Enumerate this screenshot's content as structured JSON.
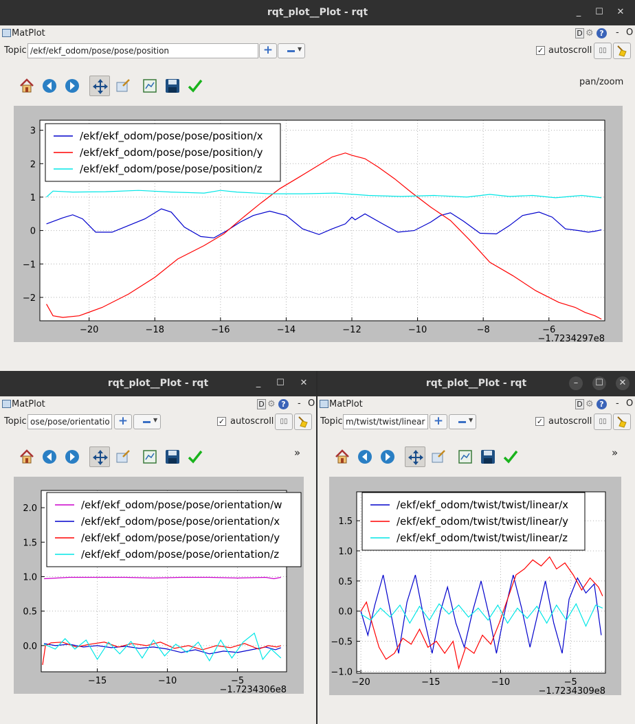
{
  "windows": [
    {
      "title": "rqt_plot__Plot - rqt",
      "plugin_label": "MatPlot",
      "d_label": "D",
      "help_label": "?",
      "dash_label": "-",
      "o_label": "O",
      "topic_label": "Topic",
      "topic_value": "/ekf/ekf_odom/pose/pose/position",
      "autoscroll_label": "autoscroll",
      "autoscroll_checked": "✓",
      "mode_label": "pan/zoom",
      "window_buttons": [
        "_",
        "☐",
        "✕"
      ],
      "chart_data": {
        "type": "line",
        "x_offset_label": "−1.7234297e8",
        "xlim": [
          -21.5,
          -4.3
        ],
        "ylim": [
          -2.7,
          3.3
        ],
        "x_ticks": [
          -20,
          -18,
          -16,
          -14,
          -12,
          -10,
          -8,
          -6
        ],
        "x_tick_labels": [
          "−20",
          "−18",
          "−16",
          "−14",
          "−12",
          "−10",
          "−8",
          "−6"
        ],
        "y_ticks": [
          -2,
          -1,
          0,
          1,
          2,
          3
        ],
        "y_tick_labels": [
          "−2",
          "−1",
          "0",
          "1",
          "2",
          "3"
        ],
        "grid": true,
        "legend_position": "top-left",
        "series": [
          {
            "name": "/ekf/ekf_odom/pose/pose/position/x",
            "color": "#0000cc",
            "x": [
              -21.3,
              -20.8,
              -20.5,
              -20.2,
              -19.8,
              -19.3,
              -18.8,
              -18.3,
              -17.8,
              -17.5,
              -17.1,
              -16.6,
              -16.2,
              -15.8,
              -15.4,
              -15.0,
              -14.5,
              -14.0,
              -13.5,
              -13.0,
              -12.6,
              -12.2,
              -12.0,
              -11.9,
              -11.6,
              -11.1,
              -10.6,
              -10.1,
              -9.6,
              -9.3,
              -9.0,
              -8.6,
              -8.1,
              -7.6,
              -7.2,
              -6.8,
              -6.3,
              -5.9,
              -5.5,
              -5.1,
              -4.8,
              -4.6,
              -4.4
            ],
            "y": [
              0.2,
              0.38,
              0.47,
              0.35,
              -0.05,
              -0.05,
              0.15,
              0.35,
              0.65,
              0.55,
              0.1,
              -0.18,
              -0.22,
              0.0,
              0.25,
              0.45,
              0.58,
              0.45,
              0.05,
              -0.12,
              0.05,
              0.2,
              0.4,
              0.32,
              0.5,
              0.22,
              -0.05,
              0.0,
              0.25,
              0.45,
              0.53,
              0.28,
              -0.08,
              -0.1,
              0.15,
              0.45,
              0.55,
              0.4,
              0.05,
              0.0,
              -0.05,
              -0.02,
              0.02
            ]
          },
          {
            "name": "/ekf/ekf_odom/pose/pose/position/y",
            "color": "#ff0000",
            "x": [
              -21.3,
              -21.1,
              -20.8,
              -20.3,
              -19.6,
              -18.8,
              -18.0,
              -17.3,
              -16.5,
              -15.9,
              -15.3,
              -14.8,
              -14.2,
              -13.6,
              -13.1,
              -12.6,
              -12.2,
              -12.0,
              -11.6,
              -11.2,
              -10.7,
              -10.2,
              -9.6,
              -9.0,
              -8.4,
              -7.8,
              -7.1,
              -6.4,
              -5.7,
              -5.2,
              -4.9,
              -4.6,
              -4.4
            ],
            "y": [
              -2.2,
              -2.55,
              -2.6,
              -2.55,
              -2.3,
              -1.9,
              -1.4,
              -0.85,
              -0.45,
              -0.1,
              0.4,
              0.8,
              1.25,
              1.6,
              1.9,
              2.2,
              2.32,
              2.25,
              2.15,
              1.9,
              1.55,
              1.15,
              0.7,
              0.3,
              -0.3,
              -0.95,
              -1.35,
              -1.8,
              -2.15,
              -2.3,
              -2.45,
              -2.55,
              -2.65
            ]
          },
          {
            "name": "/ekf/ekf_odom/pose/pose/position/z",
            "color": "#00e6e6",
            "x": [
              -21.3,
              -21.1,
              -20.5,
              -19.5,
              -18.5,
              -17.5,
              -16.5,
              -16.0,
              -15.5,
              -14.5,
              -13.5,
              -12.5,
              -11.5,
              -10.5,
              -9.5,
              -8.5,
              -7.8,
              -7.2,
              -6.5,
              -5.8,
              -5.0,
              -4.4
            ],
            "y": [
              1.0,
              1.18,
              1.15,
              1.16,
              1.2,
              1.15,
              1.12,
              1.2,
              1.15,
              1.1,
              1.1,
              1.12,
              1.05,
              1.02,
              1.05,
              1.0,
              1.08,
              1.02,
              1.05,
              0.98,
              1.05,
              0.98
            ]
          }
        ]
      }
    },
    {
      "title": "rqt_plot__Plot - rqt",
      "plugin_label": "MatPlot",
      "d_label": "D",
      "help_label": "?",
      "dash_label": "-",
      "o_label": "O",
      "topic_label": "Topic",
      "topic_value": "ose/pose/orientation",
      "autoscroll_label": "autoscroll",
      "autoscroll_checked": "✓",
      "overflow_label": "»",
      "window_buttons": [
        "_",
        "☐",
        "✕"
      ],
      "chart_data": {
        "type": "line",
        "x_offset_label": "−1.7234306e8",
        "xlim": [
          -19,
          -1.5
        ],
        "ylim": [
          -0.38,
          2.25
        ],
        "x_ticks": [
          -15,
          -10,
          -5
        ],
        "x_tick_labels": [
          "−15",
          "−10",
          "−5"
        ],
        "y_ticks": [
          0.0,
          0.5,
          1.0,
          1.5,
          2.0
        ],
        "y_tick_labels": [
          "0.0",
          "0.5",
          "1.0",
          "1.5",
          "2.0"
        ],
        "grid": true,
        "legend_position": "top-right",
        "series": [
          {
            "name": "/ekf/ekf_odom/pose/pose/orientation/w",
            "color": "#cc00cc",
            "x": [
              -18.8,
              -17,
              -15,
              -13,
              -11,
              -9,
              -7,
              -5,
              -3,
              -2.4,
              -1.9
            ],
            "y": [
              0.97,
              0.99,
              0.99,
              0.99,
              0.98,
              0.99,
              0.99,
              0.98,
              0.99,
              0.97,
              0.99
            ]
          },
          {
            "name": "/ekf/ekf_odom/pose/pose/orientation/x",
            "color": "#0000cc",
            "x": [
              -18.8,
              -18.0,
              -17.0,
              -16.0,
              -15.0,
              -14.0,
              -13.0,
              -12.0,
              -11.0,
              -10.0,
              -9.0,
              -8.0,
              -7.0,
              -6.0,
              -5.0,
              -4.0,
              -3.0,
              -2.3,
              -1.9
            ],
            "y": [
              0.03,
              0.0,
              0.02,
              -0.02,
              0.0,
              -0.03,
              -0.01,
              -0.04,
              -0.02,
              -0.05,
              -0.1,
              -0.06,
              -0.12,
              -0.08,
              -0.1,
              -0.06,
              -0.02,
              -0.06,
              -0.03
            ]
          },
          {
            "name": "/ekf/ekf_odom/pose/pose/orientation/y",
            "color": "#ff0000",
            "x": [
              -18.9,
              -18.7,
              -18.3,
              -17.5,
              -16.5,
              -15.5,
              -14.5,
              -13.5,
              -12.5,
              -11.5,
              -10.5,
              -9.5,
              -8.5,
              -7.5,
              -6.5,
              -5.5,
              -4.5,
              -3.5,
              -2.8,
              -2.2,
              -1.9
            ],
            "y": [
              -0.28,
              0.0,
              0.04,
              0.05,
              -0.02,
              0.02,
              0.05,
              -0.02,
              0.03,
              0.0,
              0.05,
              -0.04,
              0.0,
              -0.06,
              0.0,
              -0.03,
              0.03,
              -0.05,
              0.0,
              -0.02,
              0.0
            ]
          },
          {
            "name": "/ekf/ekf_odom/pose/pose/orientation/z",
            "color": "#00e6e6",
            "x": [
              -18.8,
              -18.0,
              -17.3,
              -16.6,
              -15.8,
              -15.0,
              -14.2,
              -13.4,
              -12.6,
              -11.8,
              -11.0,
              -10.2,
              -9.4,
              -8.6,
              -7.8,
              -7.0,
              -6.2,
              -5.4,
              -4.6,
              -3.8,
              -3.2,
              -2.6,
              -1.9
            ],
            "y": [
              0.02,
              -0.05,
              0.1,
              -0.05,
              0.08,
              -0.2,
              0.05,
              -0.12,
              0.06,
              -0.18,
              0.08,
              -0.15,
              0.02,
              -0.1,
              0.05,
              -0.22,
              0.08,
              -0.18,
              0.05,
              0.18,
              -0.2,
              -0.05,
              -0.18
            ]
          }
        ]
      }
    },
    {
      "title": "rqt_plot__Plot - rqt",
      "plugin_label": "MatPlot",
      "d_label": "D",
      "help_label": "?",
      "dash_label": "-",
      "o_label": "O",
      "topic_label": "Topic",
      "topic_value": "m/twist/twist/linear",
      "autoscroll_label": "autoscroll",
      "autoscroll_checked": "✓",
      "overflow_label": "»",
      "window_buttons": [
        "–",
        "☐",
        "✕"
      ],
      "chart_data": {
        "type": "line",
        "x_offset_label": "−1.7234309e8",
        "xlim": [
          -20.3,
          -2.5
        ],
        "ylim": [
          -1.03,
          1.98
        ],
        "x_ticks": [
          -20,
          -15,
          -10,
          -5
        ],
        "x_tick_labels": [
          "−20",
          "−15",
          "−10",
          "−5"
        ],
        "y_ticks": [
          -1.0,
          -0.5,
          0.0,
          0.5,
          1.0,
          1.5
        ],
        "y_tick_labels": [
          "−1.0",
          "−0.5",
          "0.0",
          "0.5",
          "1.0",
          "1.5"
        ],
        "grid": true,
        "legend_position": "top-left",
        "series": [
          {
            "name": "/ekf/ekf_odom/twist/twist/linear/x",
            "color": "#0000cc",
            "x": [
              -20.0,
              -19.5,
              -19.0,
              -18.4,
              -17.8,
              -17.3,
              -16.7,
              -16.1,
              -15.5,
              -14.9,
              -14.3,
              -13.8,
              -13.2,
              -12.6,
              -12.0,
              -11.4,
              -10.8,
              -10.3,
              -9.7,
              -9.1,
              -8.5,
              -7.9,
              -7.3,
              -6.8,
              -6.2,
              -5.6,
              -5.1,
              -4.5,
              -3.9,
              -3.3,
              -2.8
            ],
            "y": [
              0.0,
              -0.4,
              0.1,
              0.6,
              -0.1,
              -0.7,
              0.15,
              0.6,
              -0.1,
              -0.7,
              0.0,
              0.4,
              -0.2,
              -0.6,
              0.0,
              0.5,
              -0.1,
              -0.7,
              0.0,
              0.6,
              0.05,
              -0.6,
              0.0,
              0.5,
              -0.2,
              -0.7,
              0.2,
              0.55,
              0.3,
              0.45,
              -0.4
            ]
          },
          {
            "name": "/ekf/ekf_odom/twist/twist/linear/y",
            "color": "#ff0000",
            "x": [
              -20.0,
              -19.6,
              -19.2,
              -18.7,
              -18.2,
              -17.6,
              -17.0,
              -16.4,
              -15.8,
              -15.2,
              -14.6,
              -14.0,
              -13.4,
              -13.0,
              -12.5,
              -11.9,
              -11.3,
              -10.7,
              -10.1,
              -9.5,
              -8.9,
              -8.3,
              -7.7,
              -7.1,
              -6.5,
              -6.0,
              -5.4,
              -4.8,
              -4.2,
              -3.6,
              -3.0,
              -2.7
            ],
            "y": [
              0.0,
              0.15,
              -0.2,
              -0.6,
              -0.8,
              -0.7,
              -0.45,
              -0.55,
              -0.3,
              -0.6,
              -0.5,
              -0.7,
              -0.5,
              -0.95,
              -0.6,
              -0.7,
              -0.4,
              -0.55,
              -0.2,
              0.2,
              0.6,
              0.7,
              0.85,
              0.75,
              0.9,
              0.7,
              0.8,
              0.6,
              0.35,
              0.55,
              0.4,
              0.25
            ]
          },
          {
            "name": "/ekf/ekf_odom/twist/twist/linear/z",
            "color": "#00e6e6",
            "x": [
              -20.0,
              -19.3,
              -18.6,
              -17.9,
              -17.2,
              -16.5,
              -15.8,
              -15.1,
              -14.4,
              -13.7,
              -13.0,
              -12.3,
              -11.6,
              -10.9,
              -10.2,
              -9.5,
              -8.8,
              -8.1,
              -7.4,
              -6.7,
              -6.0,
              -5.3,
              -4.6,
              -3.9,
              -3.2,
              -2.7
            ],
            "y": [
              -0.05,
              -0.15,
              0.05,
              -0.1,
              0.1,
              -0.2,
              0.08,
              -0.15,
              0.12,
              -0.05,
              0.1,
              -0.1,
              0.05,
              -0.15,
              0.1,
              -0.2,
              0.05,
              -0.12,
              0.08,
              -0.2,
              0.1,
              -0.15,
              0.12,
              -0.25,
              0.1,
              0.05
            ]
          }
        ]
      }
    }
  ]
}
